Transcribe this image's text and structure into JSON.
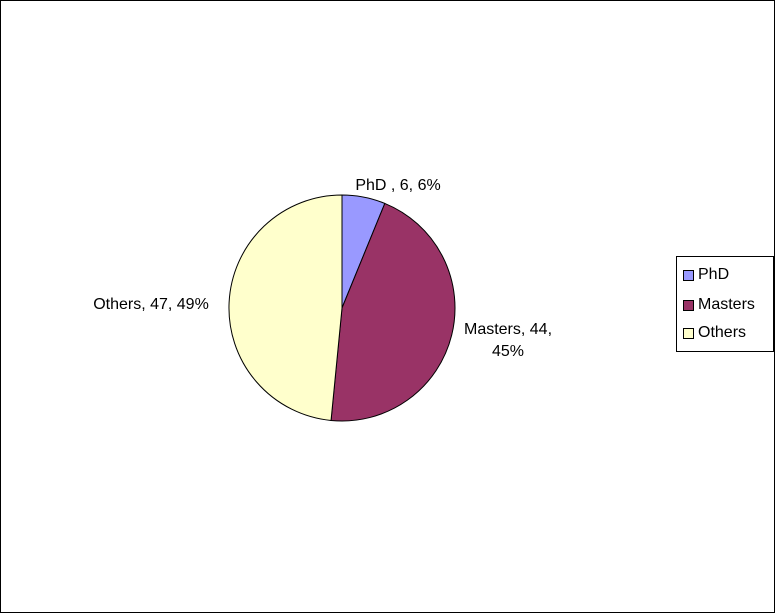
{
  "chart_data": {
    "type": "pie",
    "title": "",
    "slices": [
      {
        "name": "PhD",
        "value": 6,
        "percent": "6%",
        "color": "#9999ff",
        "label_lines": [
          "PhD , 6, 6%"
        ]
      },
      {
        "name": "Masters",
        "value": 44,
        "percent": "45%",
        "color": "#993366",
        "label_lines": [
          "Masters, 44,",
          "45%"
        ]
      },
      {
        "name": "Others",
        "value": 47,
        "percent": "49%",
        "color": "#ffffcc",
        "label_lines": [
          "Others, 47, 49%"
        ]
      }
    ],
    "legend": {
      "placement": "right",
      "items": [
        "PhD",
        "Masters",
        "Others"
      ]
    }
  }
}
